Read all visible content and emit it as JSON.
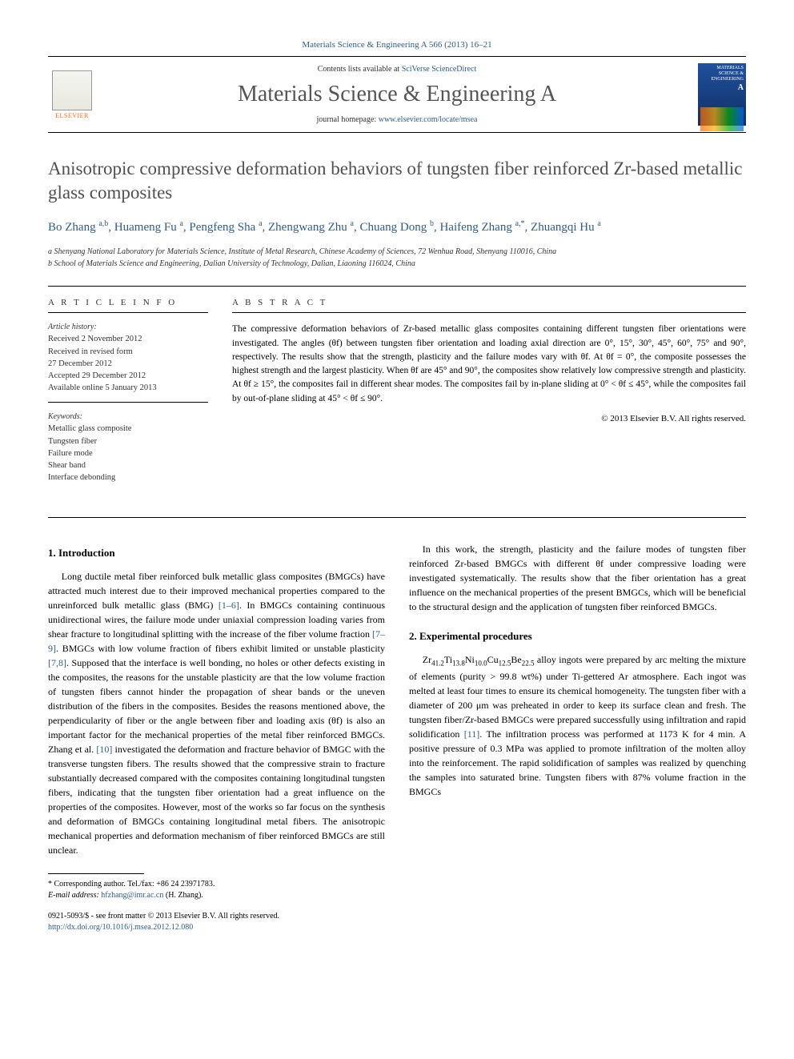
{
  "header": {
    "journal_ref": "Materials Science & Engineering A 566 (2013) 16–21",
    "contents_prefix": "Contents lists available at ",
    "contents_link": "SciVerse ScienceDirect",
    "journal_title": "Materials Science & Engineering A",
    "homepage_prefix": "journal homepage: ",
    "homepage_url": "www.elsevier.com/locate/msea",
    "publisher_logo_text": "ELSEVIER",
    "cover_text_top": "MATERIALS SCIENCE & ENGINEERING",
    "cover_text_a": "A"
  },
  "title": "Anisotropic compressive deformation behaviors of tungsten fiber reinforced Zr-based metallic glass composites",
  "authors_html": "Bo Zhang <sup>a,b</sup>, Huameng Fu <sup>a</sup>, Pengfeng Sha <sup>a</sup>, Zhengwang Zhu <sup>a</sup>, Chuang Dong <sup>b</sup>, Haifeng Zhang <sup>a,*</sup>, Zhuangqi Hu <sup>a</sup>",
  "affiliations": {
    "a": "a Shenyang National Laboratory for Materials Science, Institute of Metal Research, Chinese Academy of Sciences, 72 Wenhua Road, Shenyang 110016, China",
    "b": "b School of Materials Science and Engineering, Dalian University of Technology, Dalian, Liaoning 116024, China"
  },
  "article_info": {
    "heading": "A R T I C L E  I N F O",
    "history_label": "Article history:",
    "history": "Received 2 November 2012\nReceived in revised form\n27 December 2012\nAccepted 29 December 2012\nAvailable online 5 January 2013",
    "keywords_label": "Keywords:",
    "keywords": "Metallic glass composite\nTungsten fiber\nFailure mode\nShear band\nInterface debonding"
  },
  "abstract": {
    "heading": "A B S T R A C T",
    "text": "The compressive deformation behaviors of Zr-based metallic glass composites containing different tungsten fiber orientations were investigated. The angles (θf) between tungsten fiber orientation and loading axial direction are 0°, 15°, 30°, 45°, 60°, 75° and 90°, respectively. The results show that the strength, plasticity and the failure modes vary with θf. At θf = 0°, the composite possesses the highest strength and the largest plasticity. When θf are 45° and 90°, the composites show relatively low compressive strength and plasticity. At θf ≥ 15°, the composites fail in different shear modes. The composites fail by in-plane sliding at 0° < θf ≤ 45°, while the composites fail by out-of-plane sliding at 45° < θf ≤ 90°.",
    "copyright": "© 2013 Elsevier B.V. All rights reserved."
  },
  "sections": {
    "intro_heading": "1. Introduction",
    "intro_p1_a": "Long ductile metal fiber reinforced bulk metallic glass composites (BMGCs) have attracted much interest due to their improved mechanical properties compared to the unreinforced bulk metallic glass (BMG) ",
    "intro_ref1": "[1–6]",
    "intro_p1_b": ". In BMGCs containing continuous unidirectional wires, the failure mode under uniaxial compression loading varies from shear fracture to longitudinal splitting with the increase of the fiber volume fraction ",
    "intro_ref2": "[7–9]",
    "intro_p1_c": ". BMGCs with low volume fraction of fibers exhibit limited or unstable plasticity ",
    "intro_ref3": "[7,8]",
    "intro_p1_d": ". Supposed that the interface is well bonding, no holes or other defects existing in the composites, the reasons for the unstable plasticity are that the low volume fraction of tungsten fibers cannot hinder the propagation of shear bands or the uneven distribution of the fibers in the composites. Besides the reasons mentioned above, the perpendicularity of fiber or the angle between fiber and loading axis (θf) is also an important factor for the mechanical properties of the metal fiber reinforced BMGCs. Zhang et al. ",
    "intro_ref4": "[10]",
    "intro_p1_e": " investigated the deformation and fracture behavior of BMGC with the transverse tungsten fibers. The results showed that the compressive strain to fracture substantially decreased compared with the composites containing longitudinal tungsten fibers, indicating that the tungsten fiber orientation had a great influence on the properties of the composites. However, most of the works so far focus on the synthesis and deformation of BMGCs containing longitudinal metal fibers. The anisotropic mechanical properties and deformation mechanism of fiber reinforced BMGCs are still unclear.",
    "intro_p2": "In this work, the strength, plasticity and the failure modes of tungsten fiber reinforced Zr-based BMGCs with different θf under compressive loading were investigated systematically. The results show that the fiber orientation has a great influence on the mechanical properties of the present BMGCs, which will be beneficial to the structural design and the application of tungsten fiber reinforced BMGCs.",
    "exp_heading": "2. Experimental procedures",
    "exp_p1_a": "Zr",
    "exp_sub1": "41.2",
    "exp_p1_b": "Ti",
    "exp_sub2": "13.8",
    "exp_p1_c": "Ni",
    "exp_sub3": "10.0",
    "exp_p1_d": "Cu",
    "exp_sub4": "12.5",
    "exp_p1_e": "Be",
    "exp_sub5": "22.5",
    "exp_p1_f": " alloy ingots were prepared by arc melting the mixture of elements (purity > 99.8 wt%) under Ti-gettered Ar atmosphere. Each ingot was melted at least four times to ensure its chemical homogeneity. The tungsten fiber with a diameter of 200 μm was preheated in order to keep its surface clean and fresh. The tungsten fiber/Zr-based BMGCs were prepared successfully using infiltration and rapid solidification ",
    "exp_ref1": "[11]",
    "exp_p1_g": ". The infiltration process was performed at 1173 K for 4 min. A positive pressure of 0.3 MPa was applied to promote infiltration of the molten alloy into the reinforcement. The rapid solidification of samples was realized by quenching the samples into saturated brine. Tungsten fibers with 87% volume fraction in the BMGCs"
  },
  "footnotes": {
    "corr_label": "* Corresponding author. Tel./fax: +86 24 23971783.",
    "email_label": "E-mail address: ",
    "email": "hfzhang@imr.ac.cn",
    "email_who": " (H. Zhang)."
  },
  "footer": {
    "issn_line": "0921-5093/$ - see front matter © 2013 Elsevier B.V. All rights reserved.",
    "doi_line": "http://dx.doi.org/10.1016/j.msea.2012.12.080"
  },
  "colors": {
    "link": "#2e5c8a",
    "orange": "#ff6600",
    "heading_gray": "#505050"
  }
}
